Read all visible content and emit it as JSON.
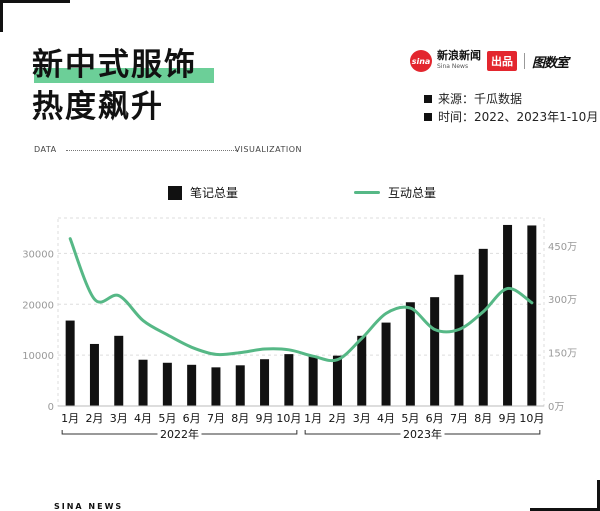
{
  "title": [
    "新中式服饰",
    "热度飙升"
  ],
  "brand": {
    "sina_cn": "新浪新闻",
    "sina_en": "Sina News",
    "sina_logo": "sina",
    "badge": "出品",
    "studio": "图数室"
  },
  "meta": {
    "source": "来源：千瓜数据",
    "time": "时间：2022、2023年1-10月"
  },
  "dataline": {
    "left": "DATA",
    "right": "VISUALIZATION"
  },
  "footer": "SINA NEWS",
  "colors": {
    "bar": "#111111",
    "line": "#56b886",
    "highlight": "#6ccf98",
    "grid": "#dddddd"
  },
  "chart_data": {
    "type": "bar+line",
    "categories": [
      "1月",
      "2月",
      "3月",
      "4月",
      "5月",
      "6月",
      "7月",
      "8月",
      "9月",
      "10月",
      "1月",
      "2月",
      "3月",
      "4月",
      "5月",
      "6月",
      "7月",
      "8月",
      "9月",
      "10月"
    ],
    "groups": [
      {
        "label": "2022年",
        "from": 0,
        "to": 9
      },
      {
        "label": "2023年",
        "from": 10,
        "to": 19
      }
    ],
    "series": [
      {
        "name": "笔记总量",
        "type": "bar",
        "axis": "left",
        "values": [
          16800,
          12200,
          13800,
          9100,
          8500,
          8100,
          7600,
          8000,
          9200,
          10200,
          9800,
          9900,
          13800,
          16400,
          20400,
          21400,
          25800,
          30900,
          35600,
          35500
        ]
      },
      {
        "name": "互动总量",
        "type": "line",
        "axis": "right",
        "values": [
          470,
          300,
          310,
          240,
          200,
          165,
          145,
          150,
          160,
          158,
          140,
          130,
          190,
          260,
          275,
          215,
          215,
          265,
          330,
          290
        ]
      }
    ],
    "left_axis": {
      "min": 0,
      "max": 35000,
      "ticks": [
        "0",
        "10000",
        "20000",
        "30000"
      ],
      "tick_values": [
        0,
        10000,
        20000,
        30000
      ]
    },
    "right_axis": {
      "min": 0,
      "max": 500,
      "ticks": [
        "0万",
        "150万",
        "300万",
        "450万"
      ],
      "tick_values": [
        0,
        150,
        300,
        450
      ]
    },
    "grid": true,
    "legend_position": "top-center"
  }
}
